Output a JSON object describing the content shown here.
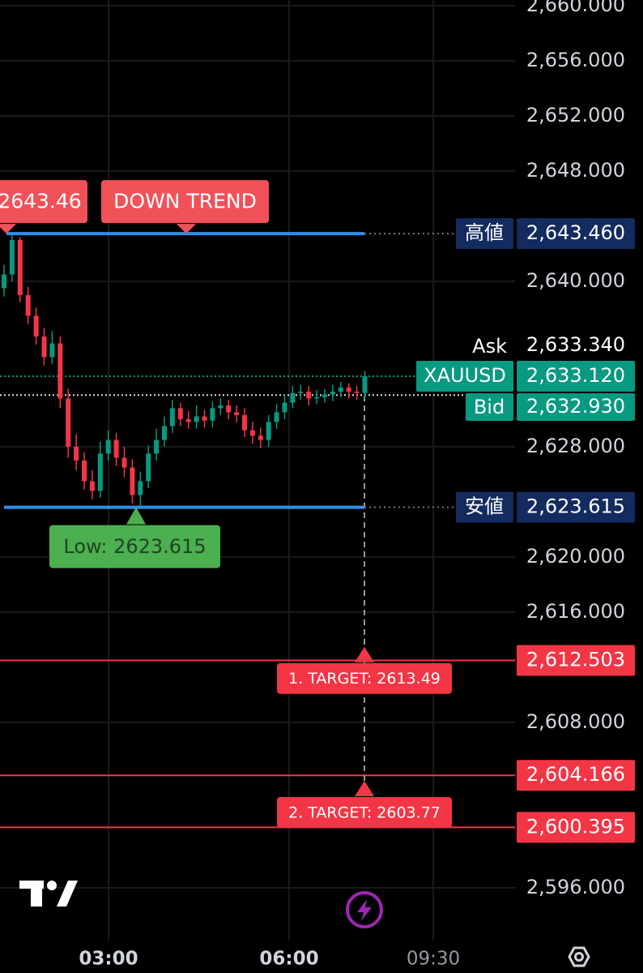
{
  "chart_data": {
    "type": "candlestick",
    "candles": {
      "open": [
        2639.5,
        2640.5,
        2643.0,
        2639.0,
        2637.5,
        2636.0,
        2634.5,
        2635.5,
        2631.5,
        2628.0,
        2627.0,
        2625.5,
        2624.8,
        2627.5,
        2628.5,
        2627.2,
        2626.5,
        2624.5,
        2625.5,
        2627.5,
        2628.5,
        2629.5,
        2630.8,
        2630.0,
        2629.8,
        2630.2,
        2629.9,
        2630.8,
        2631.0,
        2630.5,
        2630.3,
        2629.2,
        2628.8,
        2628.5,
        2629.8,
        2630.5,
        2631.2,
        2631.9,
        2632.0,
        2631.5,
        2631.6,
        2631.8,
        2632.0,
        2632.3,
        2632.0,
        2631.9
      ],
      "high": [
        2641.2,
        2643.46,
        2643.2,
        2639.6,
        2638.1,
        2636.6,
        2636.4,
        2636.0,
        2632.2,
        2628.9,
        2627.6,
        2626.3,
        2628.4,
        2629.2,
        2629.0,
        2628.0,
        2627.1,
        2626.2,
        2628.1,
        2629.3,
        2630.2,
        2631.4,
        2631.2,
        2630.6,
        2631.0,
        2630.7,
        2631.3,
        2631.5,
        2631.4,
        2631.0,
        2630.8,
        2629.8,
        2629.4,
        2630.3,
        2631.1,
        2631.8,
        2632.4,
        2632.5,
        2632.4,
        2632.1,
        2632.2,
        2632.5,
        2632.7,
        2632.6,
        2632.4,
        2633.5
      ],
      "low": [
        2638.9,
        2640.0,
        2638.5,
        2636.9,
        2635.4,
        2633.9,
        2634.0,
        2630.8,
        2627.2,
        2626.3,
        2624.9,
        2624.2,
        2624.3,
        2627.0,
        2626.6,
        2625.8,
        2623.9,
        2623.615,
        2625.0,
        2627.0,
        2628.0,
        2629.0,
        2629.5,
        2629.3,
        2629.3,
        2629.4,
        2629.4,
        2630.3,
        2630.0,
        2629.8,
        2628.7,
        2628.2,
        2627.9,
        2628.0,
        2629.3,
        2630.0,
        2630.8,
        2631.4,
        2631.0,
        2631.1,
        2631.2,
        2631.3,
        2631.6,
        2631.5,
        2631.4,
        2631.5
      ],
      "close": [
        2640.5,
        2643.0,
        2639.0,
        2637.5,
        2636.0,
        2634.5,
        2635.5,
        2631.5,
        2628.0,
        2627.0,
        2625.5,
        2624.8,
        2627.5,
        2628.5,
        2627.2,
        2626.5,
        2624.5,
        2625.5,
        2627.5,
        2628.5,
        2629.5,
        2630.8,
        2630.0,
        2629.8,
        2630.2,
        2629.9,
        2630.8,
        2631.0,
        2630.5,
        2630.3,
        2629.2,
        2628.8,
        2628.5,
        2629.8,
        2630.5,
        2631.2,
        2631.9,
        2632.0,
        2631.5,
        2631.6,
        2631.8,
        2632.0,
        2632.3,
        2632.0,
        2631.9,
        2633.12
      ]
    },
    "up_color": "#089981",
    "down_color": "#f23645",
    "ylim": [
      2592.18,
      2660.41
    ],
    "yticks": [
      {
        "value": 2660,
        "label": "2,660.000"
      },
      {
        "value": 2656,
        "label": "2,656.000"
      },
      {
        "value": 2652,
        "label": "2,652.000"
      },
      {
        "value": 2648,
        "label": "2,648.000"
      },
      {
        "value": 2640,
        "label": "2,640.000"
      },
      {
        "value": 2628,
        "label": "2,628.000"
      },
      {
        "value": 2620,
        "label": "2,620.000"
      },
      {
        "value": 2616,
        "label": "2,616.000"
      },
      {
        "value": 2608,
        "label": "2,608.000"
      },
      {
        "value": 2596,
        "label": "2,596.000"
      }
    ],
    "grid": true,
    "time_labels": [
      "03:00",
      "06:00",
      "09:30"
    ],
    "high_line": {
      "name": "高値",
      "value": 2643.46,
      "label": "2,643.460"
    },
    "low_line": {
      "name": "安値",
      "value": 2623.615,
      "label": "2,623.615"
    },
    "annotations": [
      {
        "value": 2643.46
      },
      {
        "text": "DOWN TREND",
        "value": 2643.46
      },
      {
        "text": "Low: 2623.615",
        "value": 2623.615
      }
    ],
    "quote": {
      "symbol": "XAUUSD",
      "last": {
        "value": 2633.12,
        "label": "2,633.120"
      },
      "ask": {
        "name": "Ask",
        "value": 2633.34,
        "label": "2,633.340"
      },
      "bid": {
        "name": "Bid",
        "value": 2632.93,
        "label": "2,632.930"
      }
    },
    "target_levels": [
      {
        "value": 2612.503,
        "label": "2,612.503"
      },
      {
        "value": 2604.166,
        "label": "2,604.166"
      },
      {
        "value": 2600.395,
        "label": "2,600.395"
      }
    ],
    "targets": [
      {
        "text": "1. TARGET: 2613.49",
        "value": 2613.49
      },
      {
        "text": "2. TARGET: 2603.77",
        "value": 2603.77
      }
    ]
  }
}
